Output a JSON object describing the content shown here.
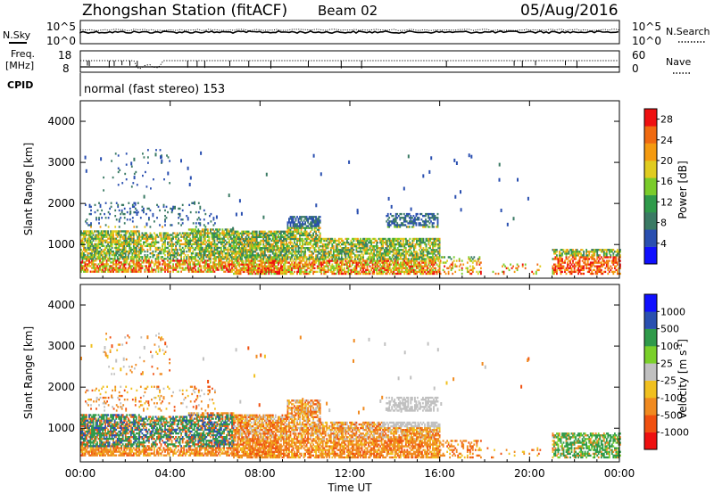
{
  "header": {
    "title": "Zhongshan Station (fitACF)",
    "beam": "Beam 02",
    "date": "05/Aug/2016"
  },
  "nsky_panel": {
    "left_label": "N.Sky",
    "right_label": "N.Search",
    "ticks_left": [
      "10^5",
      "10^0"
    ],
    "ticks_right": [
      "10^5",
      "10^0"
    ]
  },
  "freq_panel": {
    "left_label_1": "Freq.",
    "left_label_2": "[MHz]",
    "right_label": "Nave",
    "ticks_left": [
      "18",
      "8"
    ],
    "ticks_right": [
      "60",
      "0"
    ]
  },
  "cpid": {
    "label": "CPID",
    "text": "normal (fast stereo) 153"
  },
  "colors": {
    "power": [
      "#1010ff",
      "#2a4fb0",
      "#3a7a64",
      "#2f9a4a",
      "#7acc2a",
      "#e0cc20",
      "#f49a10",
      "#f06a10",
      "#ee1010"
    ],
    "velocity": [
      "#ee1010",
      "#f05010",
      "#f08a20",
      "#f0c020",
      "#c0c0c0",
      "#7ad02a",
      "#2f9a4a",
      "#2a50b0",
      "#1010ff"
    ]
  },
  "chart_data": [
    {
      "type": "heatmap",
      "name": "power",
      "ylabel": "Slant Range [km]",
      "ylim": [
        180,
        4500
      ],
      "xlim": [
        0,
        24
      ],
      "yticks": [
        "1000",
        "2000",
        "3000",
        "4000"
      ],
      "colorbar": {
        "label": "Power [dB]",
        "ticks": [
          "4",
          "8",
          "12",
          "16",
          "20",
          "24",
          "28"
        ],
        "range": [
          0,
          30
        ]
      }
    },
    {
      "type": "heatmap",
      "name": "velocity",
      "ylabel": "Slant Range [km]",
      "ylim": [
        180,
        4500
      ],
      "xlim": [
        0,
        24
      ],
      "yticks": [
        "1000",
        "2000",
        "3000",
        "4000"
      ],
      "xticks": [
        "00:00",
        "04:00",
        "08:00",
        "12:00",
        "16:00",
        "20:00",
        "00:00"
      ],
      "xlabel": "Time UT",
      "colorbar": {
        "label": "Velocity [m s",
        "label_sup": "-1",
        "ticks": [
          "1000",
          "500",
          "100",
          "25",
          "-25",
          "-100",
          "-500",
          "-1000"
        ]
      }
    }
  ]
}
